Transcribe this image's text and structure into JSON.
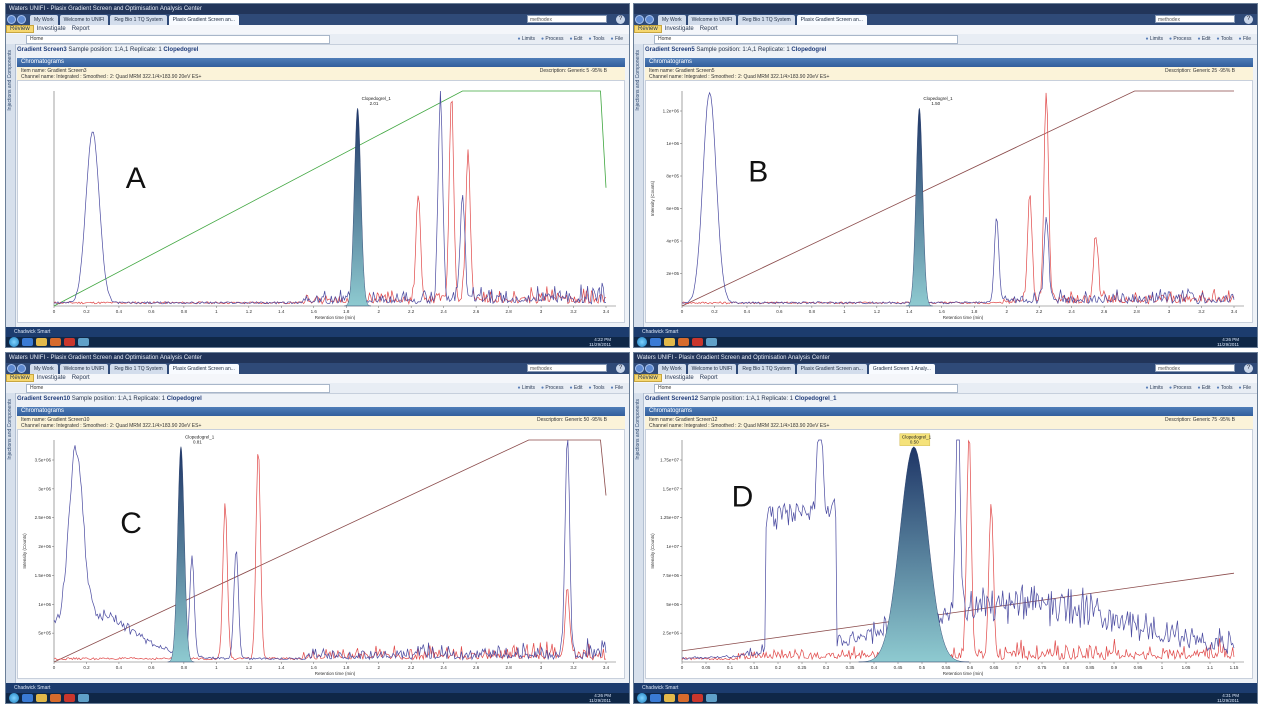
{
  "panels": [
    {
      "id": "A",
      "window_title": "Waters UNIFI - Plasix Gradient Screen and Optimisation Analysis Center",
      "tabs": [
        "My Work",
        "Welcome to UNIFI",
        "Reg Bio 1 TQ System",
        "Plasix Gradient Screen an..."
      ],
      "search_value": "methodex",
      "ribbon": [
        "Review",
        "Investigate",
        "Report"
      ],
      "address": "Home",
      "menus": [
        "Limits",
        "Process",
        "Edit",
        "Tools",
        "File"
      ],
      "side_label": "Injections and Components",
      "breadcrumb_prefix": "Gradient Screen3",
      "breadcrumb_rest": "Sample position: 1:A,1  Replicate: 1  ",
      "breadcrumb_bold": "Clopedogrel",
      "section": "Chromatograms",
      "item_name": "Item name: Gradient Screen3",
      "channel": "Channel name: Integrated : Smoothed : 2: Quad MRM 322.1/4>183.90 20eV ES+",
      "description": "Description: Generic 5 -95% B",
      "ylabel": "",
      "xlabel": "Retention time (min)",
      "peak_label": "Clopedogrel_1",
      "peak_rt": "2.01",
      "letter": "A",
      "x_ticks": [
        "0",
        "0.2",
        "0.4",
        "0.6",
        "0.8",
        "1",
        "1.2",
        "1.4",
        "1.6",
        "1.8",
        "2",
        "2.2",
        "2.4",
        "2.6",
        "2.8",
        "3",
        "3.2",
        "3.4"
      ],
      "y_ticks": [],
      "status": "Chadwick  Smart",
      "clock_time": "4:22 PM",
      "clock_date": "11/29/2011"
    },
    {
      "id": "B",
      "window_title": "",
      "tabs": [
        "My Work",
        "Welcome to UNIFI",
        "Reg Bio 1 TQ System",
        "Plasix Gradient Screen an..."
      ],
      "search_value": "methodex",
      "ribbon": [
        "Review",
        "Investigate",
        "Report"
      ],
      "address": "Home",
      "menus": [
        "Limits",
        "Process",
        "Edit",
        "Tools",
        "File"
      ],
      "side_label": "Injections and Components",
      "breadcrumb_prefix": "Gradient Screen5",
      "breadcrumb_rest": "Sample position: 1:A,1  Replicate: 1  ",
      "breadcrumb_bold": "Clopedogrel",
      "section": "Chromatograms",
      "item_name": "Item name: Gradient Screen5",
      "channel": "Channel name: Integrated : Smoothed : 2: Quad MRM 322.1/4>183.90 20eV ES+",
      "description": "Description: Generic 25 -95% B",
      "ylabel": "Intensity (Counts)",
      "xlabel": "Retention time (min)",
      "peak_label": "Clopedogrel_1",
      "peak_rt": "1.50",
      "letter": "B",
      "x_ticks": [
        "0",
        "0.2",
        "0.4",
        "0.6",
        "0.8",
        "1",
        "1.2",
        "1.4",
        "1.6",
        "1.8",
        "2",
        "2.2",
        "2.4",
        "2.6",
        "2.8",
        "3",
        "3.2",
        "3.4"
      ],
      "y_ticks": [
        "2e+05",
        "4e+05",
        "6e+05",
        "8e+05",
        "1e+06",
        "1.2e+06"
      ],
      "status": "Chadwick  Smart",
      "clock_time": "4:26 PM",
      "clock_date": "11/29/2011"
    },
    {
      "id": "C",
      "window_title": "Waters UNIFI - Plasix Gradient Screen and Optimisation Analysis Center",
      "tabs": [
        "My Work",
        "Welcome to UNIFI",
        "Reg Bio 1 TQ System",
        "Plasix Gradient Screen an..."
      ],
      "search_value": "methodex",
      "ribbon": [
        "Review",
        "Investigate",
        "Report"
      ],
      "address": "Home",
      "menus": [
        "Limits",
        "Process",
        "Edit",
        "Tools",
        "File"
      ],
      "side_label": "Injections and Components",
      "breadcrumb_prefix": "Gradient Screen10",
      "breadcrumb_rest": "Sample position: 1:A,1  Replicate: 1  ",
      "breadcrumb_bold": "Clopedogrel",
      "section": "Chromatograms",
      "item_name": "Item name: Gradient Screen10",
      "channel": "Channel name: Integrated : Smoothed : 2: Quad MRM 322.1/4>183.90 20eV ES+",
      "description": "Description: Generic 50 -95% B",
      "ylabel": "Intensity (Counts)",
      "xlabel": "Retention time (min)",
      "peak_label": "Clopedogrel_1",
      "peak_rt": "0.81",
      "letter": "C",
      "x_ticks": [
        "0",
        "0.2",
        "0.4",
        "0.6",
        "0.8",
        "1",
        "1.2",
        "1.4",
        "1.6",
        "1.8",
        "2",
        "2.2",
        "2.4",
        "2.6",
        "2.8",
        "3",
        "3.2",
        "3.4"
      ],
      "y_ticks": [
        "5e+05",
        "1e+06",
        "1.5e+06",
        "2e+06",
        "2.5e+06",
        "3e+06",
        "3.5e+06"
      ],
      "status": "Chadwick  Smart",
      "clock_time": "4:26 PM",
      "clock_date": "11/29/2011"
    },
    {
      "id": "D",
      "window_title": "Waters UNIFI - Plasix Gradient Screen and Optimisation Analysis Center",
      "tabs": [
        "My Work",
        "Welcome to UNIFI",
        "Reg Bio 1 TQ System",
        "Plasix Gradient Screen an...",
        "Gradient Screen 1 Analy..."
      ],
      "search_value": "methodex",
      "ribbon": [
        "Review",
        "Investigate",
        "Report"
      ],
      "address": "Home",
      "menus": [
        "Limits",
        "Process",
        "Edit",
        "Tools",
        "File"
      ],
      "side_label": "Injections and Components",
      "breadcrumb_prefix": "Gradient Screen12",
      "breadcrumb_rest": "Sample position: 1:A,1  Replicate: 1  ",
      "breadcrumb_bold": "Clopedogrel_1",
      "section": "Chromatograms",
      "item_name": "Item name: Gradient Screen12",
      "channel": "Channel name: Integrated : Smoothed : 2: Quad MRM 322.1/4>183.90 20eV ES+",
      "description": "Description: Generic 75 -95% B",
      "ylabel": "Intensity (Counts)",
      "xlabel": "Retention time (min)",
      "peak_label": "Clopedogrel_1",
      "peak_rt": "0.50",
      "letter": "D",
      "x_ticks": [
        "0",
        "0.05",
        "0.1",
        "0.15",
        "0.2",
        "0.25",
        "0.3",
        "0.35",
        "0.4",
        "0.45",
        "0.5",
        "0.55",
        "0.6",
        "0.65",
        "0.7",
        "0.75",
        "0.8",
        "0.85",
        "0.9",
        "0.95",
        "1",
        "1.05",
        "1.1",
        "1.15"
      ],
      "y_ticks": [
        "2.5e+06",
        "5e+06",
        "7.5e+06",
        "1e+07",
        "1.25e+07",
        "1.5e+07",
        "1.75e+07"
      ],
      "status": "Chadwick  Smart",
      "clock_time": "4:31 PM",
      "clock_date": "11/29/2011"
    }
  ],
  "colors": {
    "trace1": "#4a4aa0",
    "trace2": "#e04848",
    "peak_fill_top": "#1e3566",
    "peak_fill_bottom": "#8ecad0",
    "gradient_A": "#3fa63f",
    "gradient_other": "#8a4a4a",
    "window_accent": "#325e9c"
  }
}
